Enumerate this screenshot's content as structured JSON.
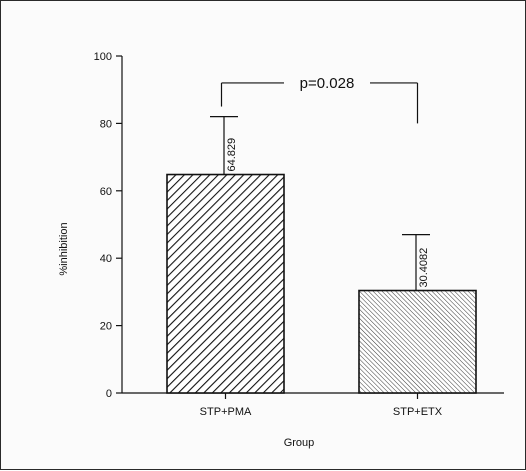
{
  "chart_data": {
    "type": "bar",
    "xlabel": "Group",
    "ylabel": "%inhibition",
    "ylim": [
      0,
      100
    ],
    "yticks": [
      0,
      20,
      40,
      60,
      80,
      100
    ],
    "ytick_labels": [
      "0",
      "20",
      "40",
      "60",
      "80",
      "100"
    ],
    "categories": [
      "STP+PMA",
      "STP+ETX"
    ],
    "values": [
      64.829,
      30.4082
    ],
    "value_labels": [
      "64.829",
      "30.4082"
    ],
    "error_upper": [
      82,
      47
    ],
    "bar_patterns": [
      "dense-diagonal-hatch",
      "fine-diagonal-hatch"
    ],
    "annotation": {
      "text": "p=0.028",
      "type": "significance-bracket",
      "between": [
        "STP+PMA",
        "STP+ETX"
      ]
    },
    "grid": false,
    "legend": "none"
  },
  "colors": {
    "ink": "#111111",
    "background": "#fbfbfb"
  }
}
